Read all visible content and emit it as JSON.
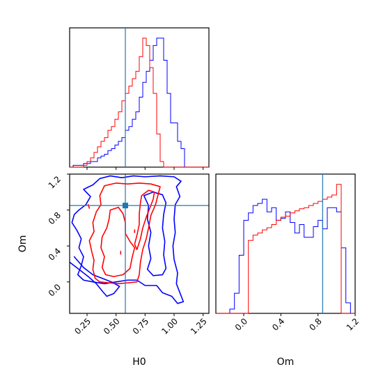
{
  "chart_data": {
    "type": "corner",
    "parameters": [
      "H0",
      "Om"
    ],
    "truths": {
      "H0": 0.58,
      "Om": 0.85
    },
    "colors": {
      "samples_a": "#0000ff",
      "samples_b": "#ff0000",
      "truth": "#1f77b4"
    },
    "panels": {
      "h0_hist": {
        "x_range": [
          0.1,
          1.3
        ],
        "x_ticks": [
          0.25,
          0.5,
          0.75,
          1.0,
          1.25
        ],
        "bin_edges": [
          0.1,
          0.13,
          0.16,
          0.19,
          0.22,
          0.25,
          0.28,
          0.31,
          0.34,
          0.37,
          0.4,
          0.43,
          0.46,
          0.49,
          0.52,
          0.55,
          0.58,
          0.61,
          0.64,
          0.67,
          0.7,
          0.73,
          0.76,
          0.79,
          0.82,
          0.85,
          0.88,
          0.91,
          0.94,
          0.97,
          1.0,
          1.03,
          1.06,
          1.09,
          1.12,
          1.15,
          1.18,
          1.21,
          1.24,
          1.27,
          1.3
        ],
        "series": [
          {
            "color": "#0000ff",
            "counts": [
              0,
              1,
              1,
              1,
              2,
              2,
              3,
              3,
              5,
              6,
              7,
              9,
              10,
              12,
              14,
              16,
              20,
              22,
              26,
              30,
              38,
              46,
              52,
              58,
              66,
              70,
              70,
              58,
              40,
              24,
              24,
              14,
              10,
              0,
              0,
              0,
              0,
              0,
              0,
              0
            ]
          },
          {
            "color": "#ff0000",
            "counts": [
              0,
              0,
              0,
              0,
              1,
              3,
              5,
              8,
              11,
              14,
              16,
              20,
              22,
              26,
              30,
              36,
              40,
              44,
              48,
              52,
              60,
              70,
              66,
              54,
              40,
              18,
              3,
              0,
              0,
              0,
              0,
              0,
              0,
              0,
              0,
              0,
              0,
              0,
              0,
              0
            ]
          }
        ]
      },
      "om_hist": {
        "x_range": [
          -0.3,
          1.2
        ],
        "x_ticks": [
          0.0,
          0.4,
          0.8,
          1.2
        ],
        "x_tick_labels": [
          "0.0",
          "0.4",
          "0.8",
          "1.2"
        ],
        "bin_edges": [
          -0.3,
          -0.25,
          -0.2,
          -0.15,
          -0.1,
          -0.05,
          0.0,
          0.05,
          0.1,
          0.15,
          0.2,
          0.25,
          0.3,
          0.35,
          0.4,
          0.45,
          0.5,
          0.55,
          0.6,
          0.65,
          0.7,
          0.75,
          0.8,
          0.85,
          0.9,
          0.95,
          1.0,
          1.05,
          1.1,
          1.15,
          1.2
        ],
        "series": [
          {
            "color": "#0000ff",
            "counts": [
              0,
              0,
              0,
              4,
              19,
              55,
              88,
              95,
              102,
              104,
              108,
              96,
              100,
              88,
              90,
              96,
              86,
              76,
              84,
              72,
              72,
              82,
              88,
              80,
              100,
              100,
              96,
              62,
              10,
              0
            ]
          },
          {
            "color": "#ff0000",
            "counts": [
              0,
              0,
              0,
              0,
              0,
              0,
              0,
              69,
              74,
              76,
              79,
              81,
              84,
              88,
              91,
              92,
              95,
              97,
              99,
              100,
              102,
              104,
              106,
              108,
              110,
              112,
              122,
              0,
              0,
              0
            ]
          }
        ]
      },
      "joint": {
        "x_range": [
          0.1,
          1.3
        ],
        "y_range": [
          -0.35,
          1.2
        ],
        "x_ticks": [
          0.25,
          0.5,
          0.75,
          1.0,
          1.25
        ],
        "x_tick_labels": [
          "0.25",
          "0.50",
          "0.75",
          "1.00",
          "1.25"
        ],
        "y_ticks": [
          0.0,
          0.4,
          0.8,
          1.2
        ],
        "y_tick_labels": [
          "0.0",
          "0.4",
          "0.8",
          "1.2"
        ],
        "contours": [
          {
            "color": "#0000ff",
            "points": [
              [
                0.36,
                1.15
              ],
              [
                0.45,
                1.18
              ],
              [
                0.55,
                1.16
              ],
              [
                0.65,
                1.18
              ],
              [
                0.75,
                1.17
              ],
              [
                0.88,
                1.18
              ],
              [
                1.0,
                1.17
              ],
              [
                1.06,
                1.12
              ],
              [
                1.02,
                1.06
              ],
              [
                1.05,
                0.95
              ],
              [
                1.01,
                0.86
              ],
              [
                1.0,
                0.7
              ],
              [
                1.01,
                0.55
              ],
              [
                0.99,
                0.4
              ],
              [
                1.0,
                0.25
              ],
              [
                1.03,
                0.1
              ],
              [
                1.02,
                -0.02
              ],
              [
                1.05,
                -0.12
              ],
              [
                1.08,
                -0.22
              ],
              [
                1.03,
                -0.24
              ],
              [
                0.98,
                -0.16
              ],
              [
                0.9,
                -0.12
              ],
              [
                0.85,
                -0.04
              ],
              [
                0.75,
                -0.04
              ],
              [
                0.68,
                0.02
              ],
              [
                0.6,
                0.02
              ],
              [
                0.5,
                0.0
              ],
              [
                0.4,
                -0.02
              ],
              [
                0.3,
                0.0
              ],
              [
                0.22,
                0.02
              ],
              [
                0.17,
                0.08
              ],
              [
                0.2,
                0.18
              ],
              [
                0.22,
                0.28
              ],
              [
                0.18,
                0.38
              ],
              [
                0.2,
                0.48
              ],
              [
                0.16,
                0.58
              ],
              [
                0.12,
                0.66
              ],
              [
                0.14,
                0.75
              ],
              [
                0.18,
                0.8
              ],
              [
                0.24,
                0.86
              ],
              [
                0.28,
                0.95
              ],
              [
                0.22,
                1.03
              ],
              [
                0.3,
                1.08
              ],
              [
                0.36,
                1.15
              ]
            ]
          },
          {
            "color": "#0000ff",
            "points": [
              [
                0.74,
                0.96
              ],
              [
                0.82,
                1.0
              ],
              [
                0.9,
                0.97
              ],
              [
                0.93,
                0.88
              ],
              [
                0.91,
                0.75
              ],
              [
                0.9,
                0.6
              ],
              [
                0.92,
                0.45
              ],
              [
                0.91,
                0.3
              ],
              [
                0.93,
                0.15
              ],
              [
                0.9,
                0.08
              ],
              [
                0.82,
                0.07
              ],
              [
                0.77,
                0.14
              ],
              [
                0.8,
                0.26
              ],
              [
                0.78,
                0.4
              ],
              [
                0.8,
                0.55
              ],
              [
                0.77,
                0.7
              ],
              [
                0.78,
                0.85
              ],
              [
                0.74,
                0.96
              ]
            ]
          },
          {
            "color": "#0000ff",
            "points": [
              [
                0.1,
                0.22
              ],
              [
                0.18,
                0.14
              ],
              [
                0.26,
                0.06
              ],
              [
                0.33,
                -0.02
              ],
              [
                0.38,
                -0.1
              ],
              [
                0.42,
                -0.16
              ],
              [
                0.48,
                -0.13
              ],
              [
                0.53,
                -0.05
              ],
              [
                0.46,
                0.0
              ],
              [
                0.38,
                0.04
              ],
              [
                0.3,
                0.08
              ],
              [
                0.22,
                0.16
              ],
              [
                0.14,
                0.28
              ]
            ]
          },
          {
            "color": "#ff0000",
            "points": [
              [
                0.4,
                1.07
              ],
              [
                0.5,
                1.1
              ],
              [
                0.6,
                1.09
              ],
              [
                0.7,
                1.1
              ],
              [
                0.8,
                1.09
              ],
              [
                0.88,
                1.06
              ],
              [
                0.86,
                0.96
              ],
              [
                0.84,
                0.86
              ],
              [
                0.8,
                0.74
              ],
              [
                0.78,
                0.6
              ],
              [
                0.76,
                0.48
              ],
              [
                0.73,
                0.36
              ],
              [
                0.71,
                0.22
              ],
              [
                0.7,
                0.08
              ],
              [
                0.68,
                0.0
              ],
              [
                0.6,
                -0.01
              ],
              [
                0.52,
                -0.02
              ],
              [
                0.44,
                -0.01
              ],
              [
                0.36,
                0.0
              ],
              [
                0.32,
                0.04
              ],
              [
                0.3,
                0.14
              ],
              [
                0.31,
                0.24
              ],
              [
                0.29,
                0.34
              ],
              [
                0.27,
                0.46
              ],
              [
                0.31,
                0.56
              ],
              [
                0.3,
                0.66
              ],
              [
                0.33,
                0.78
              ],
              [
                0.37,
                0.86
              ],
              [
                0.36,
                0.96
              ],
              [
                0.4,
                1.07
              ]
            ]
          },
          {
            "color": "#ff0000",
            "points": [
              [
                0.45,
                0.8
              ],
              [
                0.52,
                0.83
              ],
              [
                0.56,
                0.76
              ],
              [
                0.58,
                0.66
              ],
              [
                0.58,
                0.54
              ],
              [
                0.62,
                0.45
              ],
              [
                0.66,
                0.38
              ],
              [
                0.64,
                0.28
              ],
              [
                0.62,
                0.15
              ],
              [
                0.56,
                0.08
              ],
              [
                0.48,
                0.06
              ],
              [
                0.41,
                0.08
              ],
              [
                0.38,
                0.16
              ],
              [
                0.4,
                0.28
              ],
              [
                0.37,
                0.38
              ],
              [
                0.38,
                0.5
              ],
              [
                0.42,
                0.6
              ],
              [
                0.44,
                0.7
              ],
              [
                0.45,
                0.8
              ]
            ]
          },
          {
            "color": "#ff0000",
            "points": [
              [
                0.72,
                0.96
              ],
              [
                0.78,
                1.02
              ],
              [
                0.83,
                1.0
              ],
              [
                0.82,
                0.92
              ],
              [
                0.79,
                0.82
              ],
              [
                0.76,
                0.72
              ],
              [
                0.73,
                0.6
              ],
              [
                0.71,
                0.48
              ],
              [
                0.68,
                0.36
              ],
              [
                0.66,
                0.42
              ],
              [
                0.68,
                0.52
              ],
              [
                0.7,
                0.64
              ],
              [
                0.7,
                0.76
              ],
              [
                0.71,
                0.88
              ],
              [
                0.72,
                0.96
              ]
            ]
          },
          {
            "color": "#ff0000",
            "points": [
              [
                0.26,
                0.86
              ],
              [
                0.27,
                0.82
              ]
            ]
          },
          {
            "color": "#ff0000",
            "points": [
              [
                0.54,
                0.34
              ],
              [
                0.54,
                0.31
              ]
            ]
          },
          {
            "color": "#ff0000",
            "points": [
              [
                0.66,
                0.58
              ],
              [
                0.66,
                0.55
              ]
            ]
          }
        ]
      }
    }
  }
}
